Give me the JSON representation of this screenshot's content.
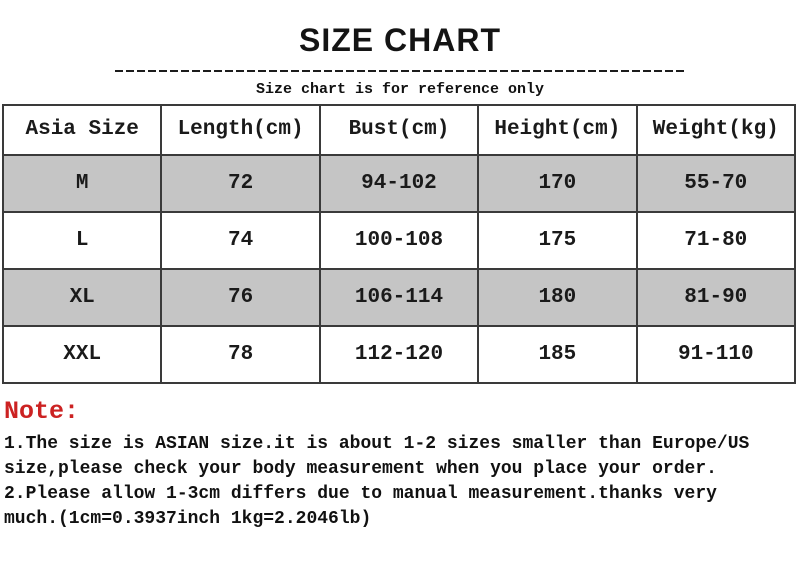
{
  "title": "SIZE CHART",
  "subtitle": "Size chart is for reference only",
  "table": {
    "headers": [
      "Asia Size",
      "Length(cm)",
      "Bust(cm)",
      "Height(cm)",
      "Weight(kg)"
    ],
    "rows": [
      {
        "size": "M",
        "length_cm": "72",
        "bust_cm": "94-102",
        "height_cm": "170",
        "weight_kg": "55-70"
      },
      {
        "size": "L",
        "length_cm": "74",
        "bust_cm": "100-108",
        "height_cm": "175",
        "weight_kg": "71-80"
      },
      {
        "size": "XL",
        "length_cm": "76",
        "bust_cm": "106-114",
        "height_cm": "180",
        "weight_kg": "81-90"
      },
      {
        "size": "XXL",
        "length_cm": "78",
        "bust_cm": "112-120",
        "height_cm": "185",
        "weight_kg": "91-110"
      }
    ]
  },
  "note": {
    "label": "Note:",
    "lines": [
      "1.The size is ASIAN size.it is about 1-2 sizes smaller than Europe/US",
      "size,please check your body measurement when you place your order.",
      "2.Please allow 1-3cm differs due to manual measurement.thanks very",
      "much.(1cm=0.3937inch 1kg=2.2046lb)"
    ]
  },
  "colors": {
    "accent_red": "#cc2222",
    "row_gray": "#c5c5c5",
    "text_black": "#111111",
    "border_dark": "#3a3a3a"
  }
}
